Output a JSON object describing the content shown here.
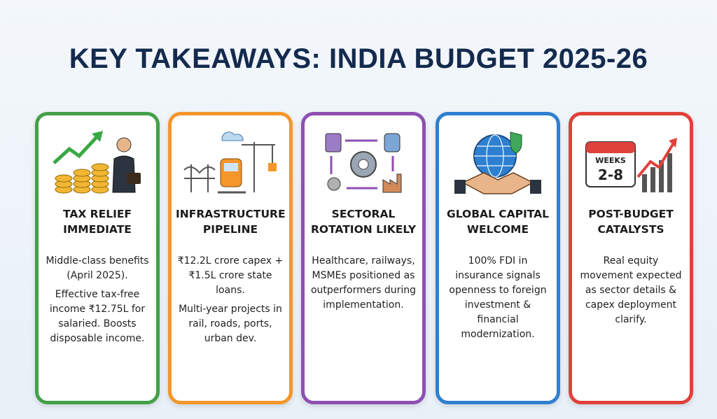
{
  "title": "KEY TAKEAWAYS: INDIA BUDGET 2025-26",
  "cards": [
    {
      "heading": "TAX RELIEF IMMEDIATE",
      "paragraphs": [
        "Middle-class benefits (April 2025).",
        "Effective tax-free income ₹12.75L for salaried. Boosts disposable income."
      ]
    },
    {
      "heading": "INFRASTRUCTURE PIPELINE",
      "paragraphs": [
        "₹12.2L crore capex + ₹1.5L crore state loans.",
        "Multi-year projects in rail, roads, ports, urban dev."
      ]
    },
    {
      "heading": "SECTORAL ROTATION LIKELY",
      "paragraphs": [
        "Healthcare, railways, MSMEs positioned as outperformers during implementation."
      ]
    },
    {
      "heading": "GLOBAL CAPITAL WELCOME",
      "paragraphs": [
        "100% FDI in insurance signals openness to foreign investment & financial modernization."
      ]
    },
    {
      "heading": "POST-BUDGET CATALYSTS",
      "icon_text": [
        "WEEKS",
        "2-8"
      ],
      "paragraphs": [
        "Real equity movement expected as sector details & capex deployment clarify."
      ]
    }
  ]
}
